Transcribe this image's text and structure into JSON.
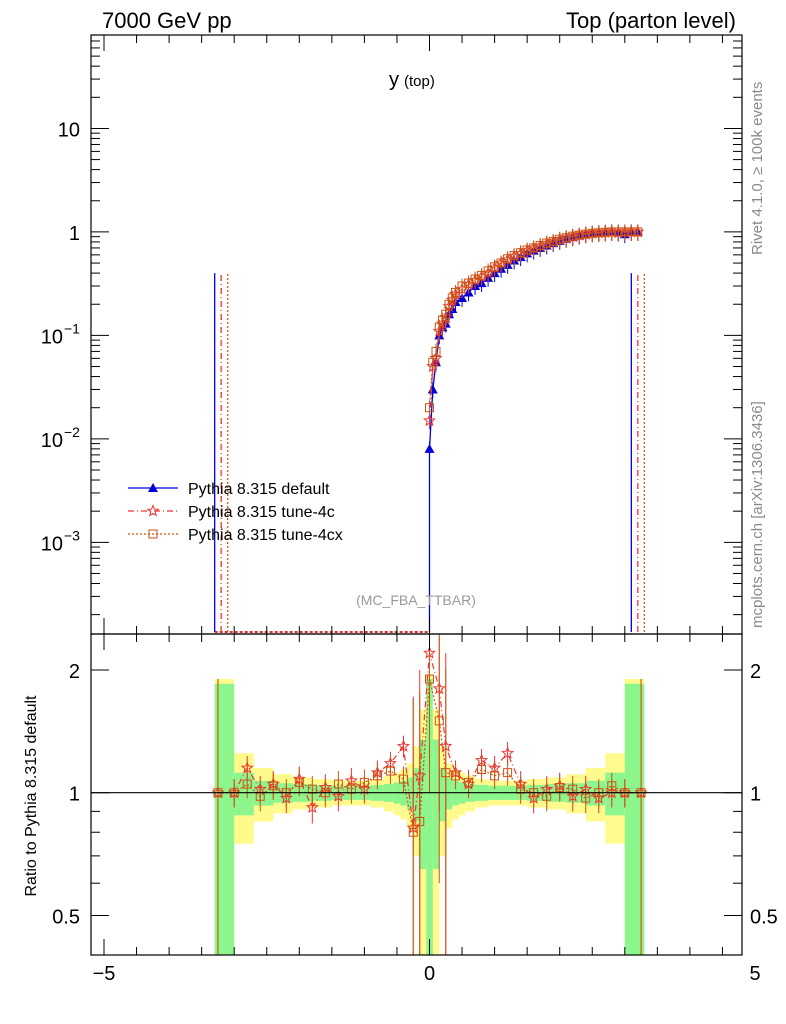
{
  "header": {
    "energy_label": "7000 GeV pp",
    "process_label": "Top (parton level)"
  },
  "side_labels": {
    "rivet": "Rivet 4.1.0, ≥ 100k events",
    "mcplots": "mcplots.cern.ch [arXiv:1306.3436]"
  },
  "chart_data": [
    {
      "type": "line",
      "panel": "main",
      "title": "y",
      "title_sub": "(top)",
      "watermark": "(MC_FBA_TTBAR)",
      "xlabel": "",
      "ylabel": "",
      "yscale": "log",
      "xlim": [
        -5,
        5
      ],
      "ylim": [
        0.00013,
        80
      ],
      "y_ticks": [
        {
          "value": 10,
          "label": "10"
        },
        {
          "value": 1,
          "label": "1"
        },
        {
          "value": 0.1,
          "label": "10",
          "exp": "−1"
        },
        {
          "value": 0.01,
          "label": "10",
          "exp": "−2"
        },
        {
          "value": 0.001,
          "label": "10",
          "exp": "−3"
        }
      ],
      "legend": [
        {
          "name": "Pythia 8.315 default",
          "color": "#0000dd",
          "marker": "triangle",
          "dash": "solid"
        },
        {
          "name": "Pythia 8.315 tune-4c",
          "color": "#ee3333",
          "marker": "star",
          "dash": "dashdot"
        },
        {
          "name": "Pythia 8.315 tune-4cx",
          "color": "#cc5511",
          "marker": "square",
          "dash": "dotted"
        }
      ],
      "x": [
        0.0,
        0.05,
        0.1,
        0.15,
        0.2,
        0.25,
        0.3,
        0.35,
        0.4,
        0.5,
        0.6,
        0.7,
        0.8,
        0.9,
        1.0,
        1.1,
        1.2,
        1.3,
        1.4,
        1.5,
        1.6,
        1.7,
        1.8,
        1.9,
        2.0,
        2.1,
        2.2,
        2.3,
        2.4,
        2.5,
        2.6,
        2.7,
        2.8,
        2.9,
        3.0,
        3.1,
        3.2
      ],
      "series": [
        {
          "name": "Pythia 8.315 default",
          "values": [
            0.008,
            0.03,
            0.055,
            0.1,
            0.12,
            0.13,
            0.16,
            0.18,
            0.21,
            0.23,
            0.26,
            0.3,
            0.32,
            0.36,
            0.4,
            0.44,
            0.48,
            0.53,
            0.57,
            0.62,
            0.66,
            0.7,
            0.74,
            0.78,
            0.82,
            0.86,
            0.89,
            0.92,
            0.95,
            0.97,
            0.98,
            0.99,
            1.0,
            1.0,
            0.95,
            1.0,
            1.0
          ]
        },
        {
          "name": "Pythia 8.315 tune-4c",
          "values": [
            0.015,
            0.05,
            0.06,
            0.11,
            0.13,
            0.15,
            0.19,
            0.22,
            0.25,
            0.28,
            0.31,
            0.34,
            0.37,
            0.4,
            0.45,
            0.5,
            0.54,
            0.58,
            0.62,
            0.66,
            0.7,
            0.73,
            0.77,
            0.8,
            0.84,
            0.87,
            0.9,
            0.93,
            0.95,
            0.97,
            0.98,
            0.99,
            1.0,
            0.98,
            1.0,
            1.0,
            1.0
          ]
        },
        {
          "name": "Pythia 8.315 tune-4cx",
          "values": [
            0.02,
            0.055,
            0.07,
            0.12,
            0.14,
            0.16,
            0.2,
            0.23,
            0.26,
            0.3,
            0.32,
            0.35,
            0.38,
            0.42,
            0.46,
            0.5,
            0.55,
            0.59,
            0.63,
            0.67,
            0.7,
            0.74,
            0.78,
            0.81,
            0.85,
            0.88,
            0.91,
            0.93,
            0.95,
            0.97,
            0.98,
            0.99,
            1.0,
            1.0,
            1.0,
            1.0,
            1.0
          ]
        }
      ],
      "spikes_x": [
        -3.3,
        -3.2,
        -3.1,
        3.1,
        3.2,
        3.3
      ],
      "spike_top": 0.4,
      "floor_xlim": [
        -3.3,
        0.0
      ]
    },
    {
      "type": "line",
      "panel": "ratio",
      "ylabel": "Ratio to Pythia 8.315 default",
      "yscale": "log",
      "ylim": [
        0.4,
        2.45
      ],
      "y_ticks": [
        {
          "value": 2,
          "label": "2"
        },
        {
          "value": 1,
          "label": "1"
        },
        {
          "value": 0.5,
          "label": "0.5"
        }
      ],
      "x_ticks": [
        {
          "value": -5,
          "label": "−5"
        },
        {
          "value": 0,
          "label": "0"
        },
        {
          "value": 5,
          "label": "5"
        }
      ],
      "xlim": [
        -5,
        5
      ],
      "x": [
        -3.25,
        -3.0,
        -2.8,
        -2.6,
        -2.4,
        -2.2,
        -2.0,
        -1.8,
        -1.6,
        -1.4,
        -1.2,
        -1.0,
        -0.8,
        -0.6,
        -0.4,
        -0.25,
        -0.15,
        0.0,
        0.15,
        0.25,
        0.4,
        0.6,
        0.8,
        1.0,
        1.2,
        1.4,
        1.6,
        1.8,
        2.0,
        2.2,
        2.4,
        2.6,
        2.8,
        3.0,
        3.25
      ],
      "series": [
        {
          "name": "Pythia 8.315 tune-4c",
          "values": [
            1.0,
            1.0,
            1.15,
            1.02,
            1.05,
            0.97,
            1.08,
            0.92,
            1.03,
            0.98,
            1.07,
            1.02,
            1.12,
            1.18,
            1.3,
            0.82,
            1.1,
            2.2,
            1.8,
            1.3,
            1.12,
            1.05,
            1.2,
            1.15,
            1.25,
            1.05,
            0.97,
            1.02,
            1.04,
            0.98,
            1.02,
            0.97,
            1.0,
            1.0,
            1.0
          ]
        },
        {
          "name": "Pythia 8.315 tune-4cx",
          "values": [
            1.0,
            1.0,
            1.05,
            0.98,
            1.04,
            1.0,
            1.06,
            1.02,
            1.0,
            1.05,
            1.02,
            1.06,
            1.1,
            1.13,
            1.08,
            0.8,
            0.85,
            1.9,
            1.5,
            1.12,
            1.1,
            1.06,
            1.14,
            1.1,
            1.12,
            1.02,
            1.0,
            0.98,
            1.03,
            1.02,
            0.97,
            1.0,
            1.04,
            1.0,
            1.0
          ]
        }
      ],
      "band_green": [
        0.85,
        0.12,
        0.07,
        0.055,
        0.05,
        0.045,
        0.04,
        0.04,
        0.045,
        0.05,
        0.06,
        0.07,
        0.09,
        0.15,
        0.35,
        0.9
      ],
      "band_yellow": [
        0.9,
        0.25,
        0.15,
        0.11,
        0.09,
        0.08,
        0.07,
        0.07,
        0.08,
        0.1,
        0.12,
        0.14,
        0.18,
        0.3,
        0.6,
        0.95
      ],
      "band_x": [
        3.3,
        3.0,
        2.7,
        2.4,
        2.1,
        1.8,
        1.5,
        1.2,
        0.9,
        0.7,
        0.55,
        0.45,
        0.35,
        0.25,
        0.15,
        0.05
      ]
    }
  ]
}
